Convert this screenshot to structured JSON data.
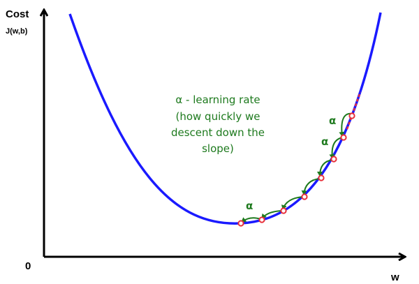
{
  "labels": {
    "y_axis_title": "Cost",
    "y_axis_subtitle": "J(w,b)",
    "origin": "0",
    "x_axis_title": "w"
  },
  "annotation": {
    "lines": [
      "α - learning rate",
      "(how quickly we",
      "descent down the",
      "slope)"
    ]
  },
  "alpha_symbol": "α",
  "steps_shown": 7,
  "colors": {
    "curve": "#1a1aff",
    "axes": "#000000",
    "annotation": "#1e7a1e",
    "step_points": "#e8303a",
    "step_arrows": "#1e7a1e"
  }
}
